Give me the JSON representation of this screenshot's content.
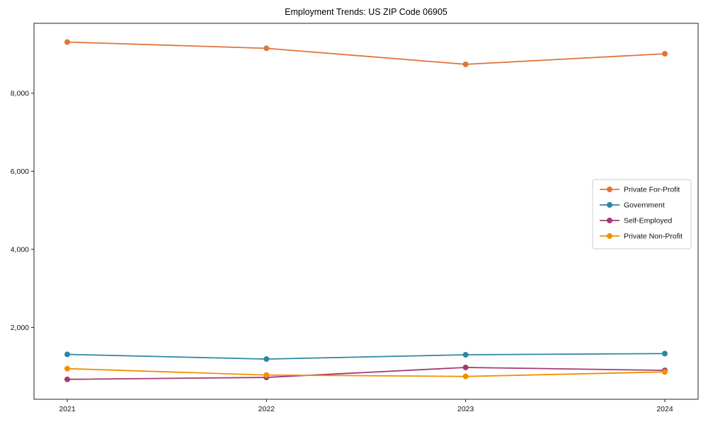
{
  "chart_data": {
    "type": "line",
    "title": "Employment Trends: US ZIP Code 06905",
    "xlabel": "",
    "ylabel": "",
    "grid": false,
    "legend_position": "center-right",
    "x": [
      2021,
      2022,
      2023,
      2024
    ],
    "x_tick_labels": [
      "2021",
      "2022",
      "2023",
      "2024"
    ],
    "y_tick_values": [
      2000,
      4000,
      6000,
      8000
    ],
    "y_tick_labels": [
      "2,000",
      "4,000",
      "6,000",
      "8,000"
    ],
    "ylim": [
      160,
      9790
    ],
    "series": [
      {
        "name": "Private For-Profit",
        "color": "#E2743B",
        "values": [
          9310,
          9150,
          8740,
          9010
        ]
      },
      {
        "name": "Government",
        "color": "#2E86A4",
        "values": [
          1310,
          1190,
          1300,
          1330
        ]
      },
      {
        "name": "Self-Employed",
        "color": "#A23B72",
        "values": [
          670,
          720,
          975,
          900
        ]
      },
      {
        "name": "Private Non-Profit",
        "color": "#F18F01",
        "values": [
          945,
          780,
          745,
          860
        ]
      }
    ],
    "colors": {
      "spine": "#222222",
      "legend_border": "#cccccc",
      "background": "#ffffff"
    }
  }
}
